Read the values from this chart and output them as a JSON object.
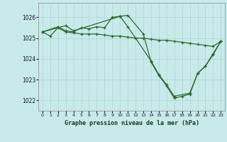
{
  "bg_color": "#c8eaea",
  "grid_color": "#b0d4d4",
  "line_color": "#2d6a2d",
  "xlabel": "Graphe pression niveau de la mer (hPa)",
  "xlim": [
    -0.5,
    23.5
  ],
  "ylim": [
    1021.5,
    1026.7
  ],
  "yticks": [
    1022,
    1023,
    1024,
    1025,
    1026
  ],
  "xticks": [
    0,
    1,
    2,
    3,
    4,
    5,
    6,
    7,
    8,
    9,
    10,
    11,
    12,
    13,
    14,
    15,
    16,
    17,
    18,
    19,
    20,
    21,
    22,
    23
  ],
  "series": [
    {
      "x": [
        0,
        1,
        2,
        3,
        4,
        5,
        6,
        7,
        8,
        9,
        10,
        11,
        12,
        13,
        14,
        15,
        16,
        17,
        18,
        19,
        20,
        21,
        22,
        23
      ],
      "y": [
        1025.3,
        1025.1,
        1025.5,
        1025.3,
        1025.25,
        1025.2,
        1025.2,
        1025.2,
        1025.15,
        1025.1,
        1025.1,
        1025.05,
        1025.0,
        1025.0,
        1024.95,
        1024.9,
        1024.9,
        1024.85,
        1024.8,
        1024.75,
        1024.7,
        1024.65,
        1024.6,
        1024.85
      ]
    },
    {
      "x": [
        0,
        2,
        3,
        4,
        5,
        6,
        7,
        8,
        9,
        10,
        11,
        13,
        14,
        15,
        16,
        17,
        18,
        19,
        20,
        21,
        22,
        23
      ],
      "y": [
        1025.3,
        1025.55,
        1025.35,
        1025.3,
        1025.5,
        1025.45,
        1025.55,
        1025.5,
        1026.0,
        1026.05,
        1026.1,
        1025.2,
        1023.85,
        1023.2,
        1022.7,
        1022.1,
        1022.2,
        1022.3,
        1023.3,
        1023.65,
        1024.2,
        1024.85
      ]
    },
    {
      "x": [
        0,
        3,
        4,
        10,
        11,
        14,
        15,
        16,
        17,
        19,
        20,
        21,
        22,
        23
      ],
      "y": [
        1025.3,
        1025.6,
        1025.35,
        1026.05,
        1025.55,
        1023.9,
        1023.25,
        1022.75,
        1022.2,
        1022.35,
        1023.3,
        1023.65,
        1024.25,
        1024.85
      ]
    }
  ]
}
